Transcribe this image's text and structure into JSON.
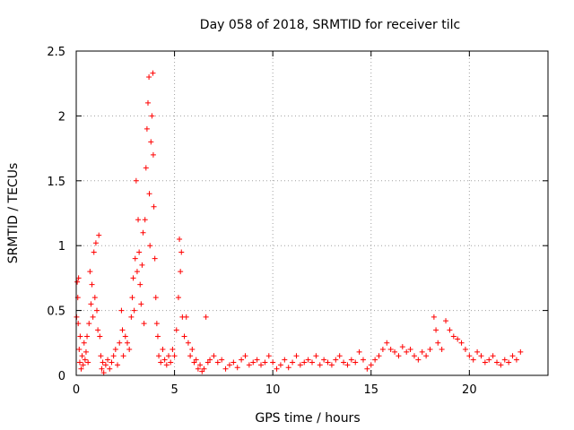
{
  "chart_data": {
    "type": "scatter",
    "title": "Day 058 of 2018, SRMTID for receiver tilc",
    "xlabel": "GPS time / hours",
    "ylabel": "SRMTID / TECUs",
    "xlim": [
      0,
      24
    ],
    "ylim": [
      0,
      2.5
    ],
    "xticks": [
      0,
      5,
      10,
      15,
      20
    ],
    "xtick_labels": [
      "0",
      "5",
      "10",
      "15",
      "20"
    ],
    "yticks": [
      0,
      0.5,
      1,
      1.5,
      2,
      2.5
    ],
    "ytick_labels": [
      "0",
      "0.5",
      "1",
      "1.5",
      "2",
      "2.5"
    ],
    "grid": true,
    "marker": "+",
    "series": [
      {
        "name": "SRMTID",
        "color": "#ff0000",
        "points": [
          [
            0.02,
            0.45
          ],
          [
            0.05,
            0.72
          ],
          [
            0.08,
            0.6
          ],
          [
            0.1,
            0.4
          ],
          [
            0.12,
            0.75
          ],
          [
            0.15,
            0.2
          ],
          [
            0.18,
            0.1
          ],
          [
            0.2,
            0.3
          ],
          [
            0.25,
            0.05
          ],
          [
            0.3,
            0.15
          ],
          [
            0.35,
            0.08
          ],
          [
            0.4,
            0.25
          ],
          [
            0.45,
            0.12
          ],
          [
            0.5,
            0.18
          ],
          [
            0.55,
            0.3
          ],
          [
            0.6,
            0.1
          ],
          [
            0.65,
            0.4
          ],
          [
            0.7,
            0.8
          ],
          [
            0.75,
            0.55
          ],
          [
            0.8,
            0.7
          ],
          [
            0.85,
            0.45
          ],
          [
            0.9,
            0.95
          ],
          [
            0.95,
            0.6
          ],
          [
            1.0,
            1.02
          ],
          [
            1.05,
            0.5
          ],
          [
            1.1,
            0.35
          ],
          [
            1.15,
            1.08
          ],
          [
            1.2,
            0.3
          ],
          [
            1.25,
            0.15
          ],
          [
            1.3,
            0.05
          ],
          [
            1.35,
            0.1
          ],
          [
            1.4,
            0.02
          ],
          [
            1.5,
            0.08
          ],
          [
            1.6,
            0.12
          ],
          [
            1.7,
            0.05
          ],
          [
            1.8,
            0.1
          ],
          [
            1.9,
            0.15
          ],
          [
            2.0,
            0.2
          ],
          [
            2.1,
            0.08
          ],
          [
            2.2,
            0.25
          ],
          [
            2.3,
            0.5
          ],
          [
            2.35,
            0.35
          ],
          [
            2.4,
            0.15
          ],
          [
            2.5,
            0.3
          ],
          [
            2.6,
            0.25
          ],
          [
            2.7,
            0.2
          ],
          [
            2.8,
            0.45
          ],
          [
            2.85,
            0.6
          ],
          [
            2.9,
            0.75
          ],
          [
            2.95,
            0.5
          ],
          [
            3.0,
            0.9
          ],
          [
            3.05,
            1.5
          ],
          [
            3.1,
            0.8
          ],
          [
            3.15,
            1.2
          ],
          [
            3.2,
            0.95
          ],
          [
            3.25,
            0.7
          ],
          [
            3.3,
            0.55
          ],
          [
            3.35,
            0.85
          ],
          [
            3.4,
            1.1
          ],
          [
            3.45,
            0.4
          ],
          [
            3.5,
            1.2
          ],
          [
            3.55,
            1.6
          ],
          [
            3.6,
            1.9
          ],
          [
            3.65,
            2.1
          ],
          [
            3.7,
            2.3
          ],
          [
            3.72,
            1.4
          ],
          [
            3.75,
            1.0
          ],
          [
            3.8,
            1.8
          ],
          [
            3.85,
            2.0
          ],
          [
            3.9,
            2.33
          ],
          [
            3.92,
            1.7
          ],
          [
            3.95,
            1.3
          ],
          [
            4.0,
            0.9
          ],
          [
            4.05,
            0.6
          ],
          [
            4.1,
            0.4
          ],
          [
            4.15,
            0.3
          ],
          [
            4.2,
            0.15
          ],
          [
            4.3,
            0.1
          ],
          [
            4.4,
            0.2
          ],
          [
            4.5,
            0.12
          ],
          [
            4.6,
            0.08
          ],
          [
            4.7,
            0.15
          ],
          [
            4.8,
            0.1
          ],
          [
            4.9,
            0.2
          ],
          [
            5.0,
            0.15
          ],
          [
            5.1,
            0.35
          ],
          [
            5.2,
            0.6
          ],
          [
            5.25,
            1.05
          ],
          [
            5.3,
            0.8
          ],
          [
            5.35,
            0.95
          ],
          [
            5.4,
            0.45
          ],
          [
            5.5,
            0.3
          ],
          [
            5.6,
            0.45
          ],
          [
            5.7,
            0.25
          ],
          [
            5.8,
            0.15
          ],
          [
            5.9,
            0.2
          ],
          [
            6.0,
            0.1
          ],
          [
            6.1,
            0.12
          ],
          [
            6.2,
            0.05
          ],
          [
            6.3,
            0.08
          ],
          [
            6.4,
            0.03
          ],
          [
            6.5,
            0.05
          ],
          [
            6.6,
            0.45
          ],
          [
            6.7,
            0.1
          ],
          [
            6.8,
            0.12
          ],
          [
            7.0,
            0.15
          ],
          [
            7.2,
            0.1
          ],
          [
            7.4,
            0.12
          ],
          [
            7.6,
            0.05
          ],
          [
            7.8,
            0.08
          ],
          [
            8.0,
            0.1
          ],
          [
            8.2,
            0.06
          ],
          [
            8.4,
            0.12
          ],
          [
            8.6,
            0.15
          ],
          [
            8.8,
            0.08
          ],
          [
            9.0,
            0.1
          ],
          [
            9.2,
            0.12
          ],
          [
            9.4,
            0.08
          ],
          [
            9.6,
            0.1
          ],
          [
            9.8,
            0.15
          ],
          [
            10.0,
            0.1
          ],
          [
            10.2,
            0.05
          ],
          [
            10.4,
            0.08
          ],
          [
            10.6,
            0.12
          ],
          [
            10.8,
            0.06
          ],
          [
            11.0,
            0.1
          ],
          [
            11.2,
            0.15
          ],
          [
            11.4,
            0.08
          ],
          [
            11.6,
            0.1
          ],
          [
            11.8,
            0.12
          ],
          [
            12.0,
            0.1
          ],
          [
            12.2,
            0.15
          ],
          [
            12.4,
            0.08
          ],
          [
            12.6,
            0.12
          ],
          [
            12.8,
            0.1
          ],
          [
            13.0,
            0.08
          ],
          [
            13.2,
            0.12
          ],
          [
            13.4,
            0.15
          ],
          [
            13.6,
            0.1
          ],
          [
            13.8,
            0.08
          ],
          [
            14.0,
            0.12
          ],
          [
            14.2,
            0.1
          ],
          [
            14.4,
            0.18
          ],
          [
            14.6,
            0.12
          ],
          [
            14.8,
            0.05
          ],
          [
            15.0,
            0.08
          ],
          [
            15.2,
            0.12
          ],
          [
            15.4,
            0.15
          ],
          [
            15.6,
            0.2
          ],
          [
            15.8,
            0.25
          ],
          [
            16.0,
            0.2
          ],
          [
            16.2,
            0.18
          ],
          [
            16.4,
            0.15
          ],
          [
            16.6,
            0.22
          ],
          [
            16.8,
            0.18
          ],
          [
            17.0,
            0.2
          ],
          [
            17.2,
            0.15
          ],
          [
            17.4,
            0.12
          ],
          [
            17.6,
            0.18
          ],
          [
            17.8,
            0.15
          ],
          [
            18.0,
            0.2
          ],
          [
            18.2,
            0.45
          ],
          [
            18.3,
            0.35
          ],
          [
            18.4,
            0.25
          ],
          [
            18.6,
            0.2
          ],
          [
            18.8,
            0.42
          ],
          [
            19.0,
            0.35
          ],
          [
            19.2,
            0.3
          ],
          [
            19.4,
            0.28
          ],
          [
            19.6,
            0.25
          ],
          [
            19.8,
            0.2
          ],
          [
            20.0,
            0.15
          ],
          [
            20.2,
            0.12
          ],
          [
            20.4,
            0.18
          ],
          [
            20.6,
            0.15
          ],
          [
            20.8,
            0.1
          ],
          [
            21.0,
            0.12
          ],
          [
            21.2,
            0.15
          ],
          [
            21.4,
            0.1
          ],
          [
            21.6,
            0.08
          ],
          [
            21.8,
            0.12
          ],
          [
            22.0,
            0.1
          ],
          [
            22.2,
            0.15
          ],
          [
            22.4,
            0.12
          ],
          [
            22.6,
            0.18
          ]
        ]
      }
    ]
  }
}
